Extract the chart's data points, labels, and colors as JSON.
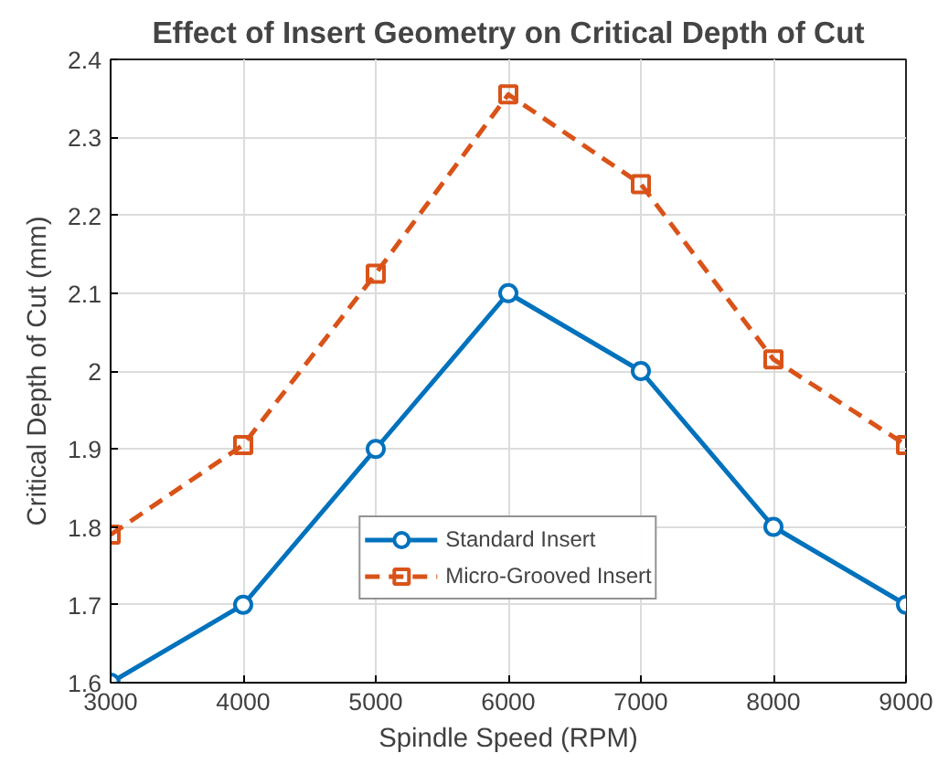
{
  "chart_data": {
    "type": "line",
    "title": "Effect of Insert Geometry on Critical Depth of Cut",
    "xlabel": "Spindle Speed (RPM)",
    "ylabel": "Critical Depth of Cut (mm)",
    "x": [
      3000,
      4000,
      5000,
      6000,
      7000,
      8000,
      9000
    ],
    "series": [
      {
        "name": "Standard Insert",
        "color": "#0072bd",
        "marker": "circle",
        "line_style": "solid",
        "values": [
          1.6,
          1.7,
          1.9,
          2.1,
          2.0,
          1.8,
          1.7
        ]
      },
      {
        "name": "Micro-Grooved Insert",
        "color": "#d95319",
        "marker": "square",
        "line_style": "dashed",
        "values": [
          1.79,
          1.905,
          2.125,
          2.355,
          2.24,
          2.015,
          1.905
        ]
      }
    ],
    "xlim": [
      3000,
      9000
    ],
    "ylim": [
      1.6,
      2.4
    ],
    "xticks": [
      3000,
      4000,
      5000,
      6000,
      7000,
      8000,
      9000
    ],
    "yticks": [
      1.6,
      1.7,
      1.8,
      1.9,
      2,
      2.1,
      2.2,
      2.3,
      2.4
    ],
    "grid": true,
    "legend": "bottom"
  }
}
